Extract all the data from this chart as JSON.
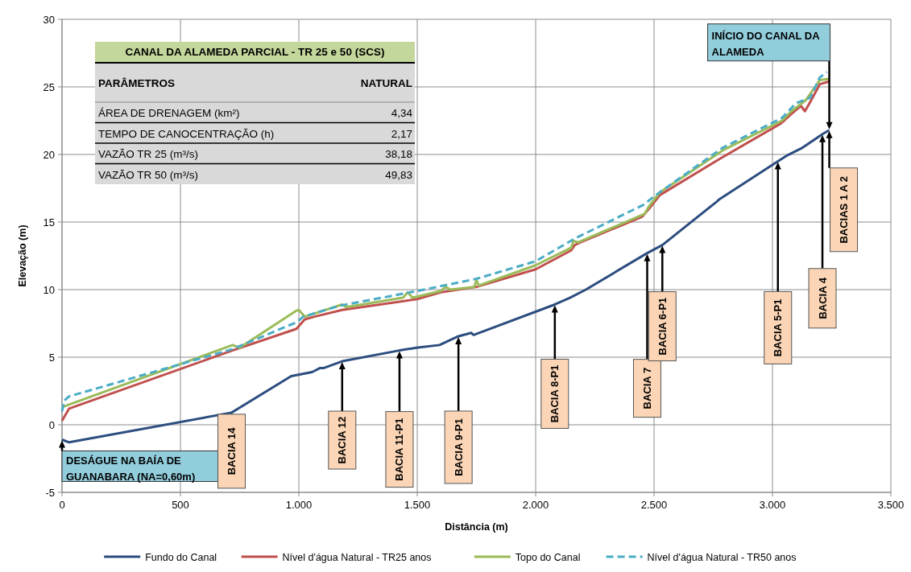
{
  "chart_data": {
    "type": "line",
    "xlabel": "Distância (m)",
    "ylabel": "Elevação (m)",
    "xlim": [
      0,
      3500
    ],
    "ylim": [
      -5,
      30
    ],
    "xticks": [
      0,
      500,
      {
        "value": 1000,
        "label": "1.000"
      },
      {
        "value": 1500,
        "label": "1.500"
      },
      {
        "value": 2000,
        "label": "2.000"
      },
      {
        "value": 2500,
        "label": "2.500"
      },
      {
        "value": 3000,
        "label": "3.000"
      },
      {
        "value": 3500,
        "label": "3.500"
      }
    ],
    "yticks": [
      -5,
      0,
      5,
      10,
      15,
      20,
      25,
      30
    ],
    "grid": true,
    "legend": "bottom",
    "marker": "none",
    "series": [
      {
        "name": "Fundo do Canal",
        "color": "#2c4d7f",
        "line_style": "solid",
        "x": [
          0,
          30,
          716,
          968,
          1056,
          1090,
          1106,
          1183,
          1425,
          1496,
          1594,
          1674,
          1728,
          1738,
          2081,
          2145,
          2212,
          2471,
          2535,
          2764,
          2777,
          3023,
          3059,
          3093,
          3127,
          3211,
          3240
        ],
        "values": [
          -1.1,
          -1.3,
          0.9,
          3.6,
          3.9,
          4.2,
          4.2,
          4.7,
          5.5,
          5.7,
          5.9,
          6.55,
          6.8,
          6.65,
          8.9,
          9.4,
          10.0,
          12.7,
          13.3,
          16.5,
          16.7,
          19.5,
          19.9,
          20.2,
          20.5,
          21.5,
          21.8
        ]
      },
      {
        "name": "Nível d'água Natural - TR25 anos",
        "color": "#c0504d",
        "line_style": "solid",
        "x": [
          0,
          30,
          720,
          990,
          1025,
          1066,
          1183,
          1500,
          1600,
          1750,
          2000,
          2150,
          2165,
          2190,
          2450,
          2475,
          2525,
          2780,
          3036,
          3080,
          3120,
          3137,
          3160,
          3200,
          3240
        ],
        "values": [
          0.3,
          1.2,
          5.5,
          7.1,
          7.8,
          8.0,
          8.5,
          9.3,
          9.8,
          10.2,
          11.5,
          12.9,
          13.3,
          13.5,
          15.4,
          15.9,
          17.0,
          19.7,
          22.3,
          23.0,
          23.6,
          23.2,
          23.9,
          25.2,
          25.4
        ]
      },
      {
        "name": "Topo do Canal",
        "color": "#9bbb59",
        "line_style": "solid",
        "x": [
          0,
          30,
          720,
          750,
          985,
          1000,
          1025,
          1183,
          1200,
          1440,
          1460,
          1480,
          1600,
          1620,
          1640,
          1740,
          1750,
          1760,
          2000,
          2150,
          2160,
          2180,
          2460,
          2480,
          2525,
          2790,
          3040,
          3080,
          3140,
          3200,
          3240
        ],
        "values": [
          1.3,
          1.5,
          5.9,
          5.7,
          8.4,
          8.5,
          8.0,
          8.9,
          8.7,
          9.4,
          9.8,
          9.4,
          9.9,
          10.2,
          10.0,
          10.2,
          10.7,
          10.3,
          11.8,
          13.1,
          13.6,
          13.5,
          15.6,
          16.2,
          17.2,
          20.3,
          22.5,
          23.2,
          24.0,
          25.5,
          25.6
        ]
      },
      {
        "name": "Nível d'água Natural - TR50 anos",
        "color": "#4bacc6",
        "line_style": "dashed",
        "x": [
          0,
          10,
          30,
          720,
          992,
          1019,
          1170,
          1500,
          1750,
          2000,
          2168,
          2458,
          2500,
          2790,
          3040,
          3100,
          3160,
          3200,
          3230
        ],
        "values": [
          1.0,
          1.8,
          2.1,
          5.6,
          7.6,
          8.0,
          8.8,
          9.9,
          10.8,
          12.1,
          13.8,
          16.3,
          16.9,
          20.5,
          22.7,
          23.8,
          24.2,
          25.7,
          26.1
        ]
      }
    ],
    "annotations": [
      "CANAL DA ALAMEDA PARCIAL - TR 25 e 50 (SCS)",
      "PARÂMETROS",
      "NATURAL",
      "ÁREA DE DRENAGEM (km²)",
      "4,34",
      "TEMPO DE CANOCENTRAÇÃO (h)",
      "2,17",
      "VAZÃO TR 25 (m³/s)",
      "38,18",
      "VAZÃO TR 50 (m³/s)",
      "49,83",
      {
        "text": "DESÁGUE NA BAÍA DE GUANABARA (NA=0,60m)",
        "x": 0,
        "y": -1.1
      },
      {
        "text": "BACIA 14",
        "x": 716,
        "y": 0.9
      },
      {
        "text": "BACIA 12",
        "x": 1183,
        "y": 4.7
      },
      {
        "text": "BACIA 11-P1",
        "x": 1425,
        "y": 5.5
      },
      {
        "text": "BACIA 9-P1",
        "x": 1674,
        "y": 6.55
      },
      {
        "text": "BACIA 8-P1",
        "x": 2081,
        "y": 8.9
      },
      {
        "text": "BACIA 7",
        "x": 2471,
        "y": 12.7
      },
      {
        "text": "BACIA 6-P1",
        "x": 2535,
        "y": 13.3
      },
      {
        "text": "BACIA 5-P1",
        "x": 3023,
        "y": 19.5
      },
      {
        "text": "BACIA 4",
        "x": 3211,
        "y": 21.5
      },
      {
        "text": "BACIAS 1 A 2",
        "x": 3240,
        "y": 21.8
      },
      {
        "text": "INÍCIO DO CANAL DA ALAMEDA",
        "x": 3240,
        "y": 21.8
      }
    ]
  }
}
